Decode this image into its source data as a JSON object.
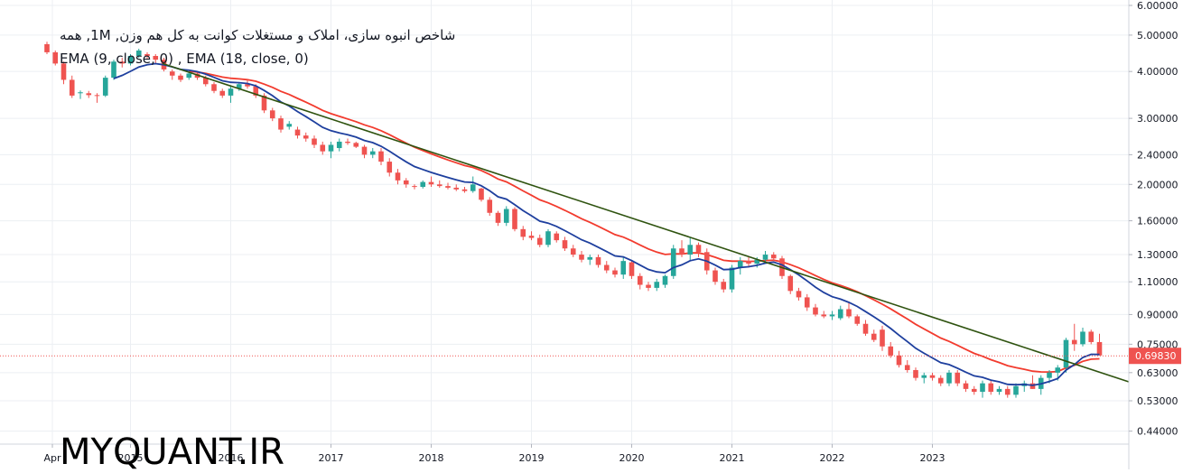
{
  "chart_title": "شاخص انبوه سازی، املاک و مستغلات کوانت به کل هم وزن, 1M, همه",
  "indicator_legend": "EMA (9, close, 0) , EMA (18, close, 0)",
  "watermark": "MYQUANT.IR",
  "colors": {
    "up": "#26a69a",
    "down": "#ef5350",
    "ema9": "#1e3f9e",
    "ema18": "#f23b2e",
    "trendline": "#2f5310",
    "last_price_bg": "#ef5350",
    "grid": "#eceff3"
  },
  "chart_data": {
    "type": "candlestick",
    "interval": "1M",
    "y_scale": "log",
    "ylim": [
      0.42,
      6.0
    ],
    "y_ticks": [
      "6.00000",
      "5.00000",
      "4.00000",
      "3.00000",
      "2.40000",
      "2.00000",
      "1.60000",
      "1.30000",
      "1.10000",
      "0.90000",
      "0.75000",
      "0.63000",
      "0.53000",
      "0.44000"
    ],
    "x_ticks": [
      "Apr",
      "2015",
      "2016",
      "2017",
      "2018",
      "2019",
      "2020",
      "2021",
      "2022",
      "2023"
    ],
    "last_price_label": "0.69830",
    "last_price": 0.6983,
    "series": [
      {
        "name": "EMA (9, close, 0)",
        "style": "line"
      },
      {
        "name": "EMA (18, close, 0)",
        "style": "line"
      }
    ],
    "trendline": {
      "from": [
        4.5,
        4.2
      ],
      "to": [
        10.05,
        0.62
      ]
    },
    "candles": [
      [
        4.73,
        4.8,
        4.45,
        4.5
      ],
      [
        4.5,
        4.55,
        4.15,
        4.2
      ],
      [
        4.2,
        4.25,
        3.7,
        3.8
      ],
      [
        3.8,
        3.9,
        3.4,
        3.45
      ],
      [
        3.5,
        3.56,
        3.38,
        3.52
      ],
      [
        3.5,
        3.55,
        3.4,
        3.46
      ],
      [
        3.46,
        3.5,
        3.3,
        3.45
      ],
      [
        3.45,
        3.9,
        3.42,
        3.85
      ],
      [
        3.85,
        4.3,
        3.8,
        4.25
      ],
      [
        4.25,
        4.35,
        4.1,
        4.2
      ],
      [
        4.2,
        4.45,
        4.15,
        4.4
      ],
      [
        4.4,
        4.6,
        4.35,
        4.55
      ],
      [
        4.45,
        4.5,
        4.3,
        4.4
      ],
      [
        4.4,
        4.45,
        4.2,
        4.3
      ],
      [
        4.3,
        4.35,
        4.0,
        4.05
      ],
      [
        4.0,
        4.05,
        3.8,
        3.9
      ],
      [
        3.9,
        3.95,
        3.75,
        3.8
      ],
      [
        3.85,
        4.0,
        3.8,
        3.95
      ],
      [
        3.95,
        4.0,
        3.8,
        3.85
      ],
      [
        3.85,
        3.9,
        3.65,
        3.7
      ],
      [
        3.7,
        3.75,
        3.5,
        3.55
      ],
      [
        3.55,
        3.6,
        3.4,
        3.45
      ],
      [
        3.45,
        3.65,
        3.3,
        3.6
      ],
      [
        3.6,
        3.75,
        3.55,
        3.7
      ],
      [
        3.7,
        3.8,
        3.6,
        3.65
      ],
      [
        3.65,
        3.7,
        3.4,
        3.45
      ],
      [
        3.45,
        3.5,
        3.1,
        3.15
      ],
      [
        3.15,
        3.2,
        2.95,
        3.0
      ],
      [
        3.0,
        3.05,
        2.75,
        2.8
      ],
      [
        2.85,
        2.95,
        2.8,
        2.9
      ],
      [
        2.8,
        2.85,
        2.65,
        2.7
      ],
      [
        2.7,
        2.75,
        2.6,
        2.65
      ],
      [
        2.65,
        2.7,
        2.5,
        2.55
      ],
      [
        2.55,
        2.6,
        2.4,
        2.45
      ],
      [
        2.45,
        2.6,
        2.35,
        2.55
      ],
      [
        2.5,
        2.65,
        2.45,
        2.6
      ],
      [
        2.6,
        2.65,
        2.55,
        2.58
      ],
      [
        2.58,
        2.6,
        2.5,
        2.52
      ],
      [
        2.52,
        2.55,
        2.35,
        2.4
      ],
      [
        2.4,
        2.5,
        2.35,
        2.45
      ],
      [
        2.45,
        2.5,
        2.25,
        2.3
      ],
      [
        2.3,
        2.35,
        2.1,
        2.15
      ],
      [
        2.15,
        2.2,
        2.0,
        2.05
      ],
      [
        2.05,
        2.08,
        1.96,
        2.0
      ],
      [
        1.98,
        2.0,
        1.94,
        1.97
      ],
      [
        1.97,
        2.05,
        1.95,
        2.03
      ],
      [
        2.03,
        2.1,
        1.97,
        2.0
      ],
      [
        2.0,
        2.05,
        1.96,
        1.98
      ],
      [
        1.98,
        2.02,
        1.94,
        1.96
      ],
      [
        1.96,
        2.0,
        1.92,
        1.94
      ],
      [
        1.94,
        1.97,
        1.9,
        1.92
      ],
      [
        1.92,
        2.1,
        1.9,
        2.0
      ],
      [
        1.95,
        1.96,
        1.8,
        1.82
      ],
      [
        1.82,
        1.85,
        1.65,
        1.68
      ],
      [
        1.68,
        1.7,
        1.55,
        1.58
      ],
      [
        1.58,
        1.75,
        1.55,
        1.72
      ],
      [
        1.72,
        1.74,
        1.5,
        1.52
      ],
      [
        1.52,
        1.55,
        1.42,
        1.45
      ],
      [
        1.46,
        1.5,
        1.42,
        1.44
      ],
      [
        1.44,
        1.47,
        1.36,
        1.38
      ],
      [
        1.38,
        1.52,
        1.36,
        1.5
      ],
      [
        1.48,
        1.5,
        1.4,
        1.42
      ],
      [
        1.42,
        1.45,
        1.33,
        1.35
      ],
      [
        1.35,
        1.38,
        1.28,
        1.3
      ],
      [
        1.3,
        1.33,
        1.24,
        1.26
      ],
      [
        1.26,
        1.3,
        1.22,
        1.28
      ],
      [
        1.28,
        1.3,
        1.2,
        1.22
      ],
      [
        1.22,
        1.25,
        1.16,
        1.18
      ],
      [
        1.18,
        1.2,
        1.13,
        1.15
      ],
      [
        1.15,
        1.28,
        1.12,
        1.25
      ],
      [
        1.24,
        1.25,
        1.12,
        1.14
      ],
      [
        1.14,
        1.16,
        1.05,
        1.08
      ],
      [
        1.08,
        1.1,
        1.04,
        1.06
      ],
      [
        1.06,
        1.12,
        1.04,
        1.1
      ],
      [
        1.08,
        1.15,
        1.06,
        1.14
      ],
      [
        1.14,
        1.38,
        1.12,
        1.35
      ],
      [
        1.35,
        1.42,
        1.28,
        1.3
      ],
      [
        1.3,
        1.44,
        1.25,
        1.38
      ],
      [
        1.38,
        1.4,
        1.28,
        1.32
      ],
      [
        1.32,
        1.35,
        1.15,
        1.18
      ],
      [
        1.18,
        1.2,
        1.08,
        1.1
      ],
      [
        1.1,
        1.12,
        1.03,
        1.05
      ],
      [
        1.05,
        1.22,
        1.03,
        1.2
      ],
      [
        1.2,
        1.28,
        1.15,
        1.25
      ],
      [
        1.25,
        1.28,
        1.2,
        1.23
      ],
      [
        1.23,
        1.28,
        1.2,
        1.26
      ],
      [
        1.26,
        1.33,
        1.24,
        1.3
      ],
      [
        1.3,
        1.32,
        1.25,
        1.27
      ],
      [
        1.27,
        1.29,
        1.12,
        1.14
      ],
      [
        1.14,
        1.15,
        1.02,
        1.04
      ],
      [
        1.04,
        1.06,
        0.98,
        1.0
      ],
      [
        1.0,
        1.02,
        0.92,
        0.94
      ],
      [
        0.94,
        0.96,
        0.89,
        0.9
      ],
      [
        0.9,
        0.92,
        0.88,
        0.89
      ],
      [
        0.89,
        0.92,
        0.87,
        0.9
      ],
      [
        0.88,
        0.95,
        0.87,
        0.93
      ],
      [
        0.93,
        0.97,
        0.88,
        0.89
      ],
      [
        0.89,
        0.9,
        0.84,
        0.85
      ],
      [
        0.85,
        0.87,
        0.79,
        0.8
      ],
      [
        0.8,
        0.82,
        0.76,
        0.77
      ],
      [
        0.82,
        0.84,
        0.72,
        0.74
      ],
      [
        0.74,
        0.76,
        0.69,
        0.7
      ],
      [
        0.7,
        0.72,
        0.65,
        0.66
      ],
      [
        0.66,
        0.68,
        0.63,
        0.64
      ],
      [
        0.64,
        0.65,
        0.6,
        0.61
      ],
      [
        0.61,
        0.63,
        0.59,
        0.62
      ],
      [
        0.62,
        0.63,
        0.6,
        0.61
      ],
      [
        0.61,
        0.62,
        0.58,
        0.59
      ],
      [
        0.59,
        0.64,
        0.58,
        0.63
      ],
      [
        0.63,
        0.64,
        0.58,
        0.59
      ],
      [
        0.59,
        0.6,
        0.56,
        0.57
      ],
      [
        0.57,
        0.58,
        0.55,
        0.56
      ],
      [
        0.56,
        0.6,
        0.54,
        0.59
      ],
      [
        0.59,
        0.6,
        0.55,
        0.56
      ],
      [
        0.56,
        0.58,
        0.55,
        0.57
      ],
      [
        0.57,
        0.58,
        0.54,
        0.55
      ],
      [
        0.55,
        0.59,
        0.54,
        0.58
      ],
      [
        0.58,
        0.6,
        0.56,
        0.59
      ],
      [
        0.59,
        0.62,
        0.57,
        0.57
      ],
      [
        0.57,
        0.62,
        0.55,
        0.61
      ],
      [
        0.61,
        0.64,
        0.59,
        0.63
      ],
      [
        0.63,
        0.66,
        0.6,
        0.65
      ],
      [
        0.65,
        0.78,
        0.63,
        0.77
      ],
      [
        0.77,
        0.85,
        0.72,
        0.75
      ],
      [
        0.75,
        0.83,
        0.74,
        0.81
      ],
      [
        0.81,
        0.82,
        0.75,
        0.76
      ],
      [
        0.76,
        0.8,
        0.7,
        0.7
      ]
    ]
  }
}
